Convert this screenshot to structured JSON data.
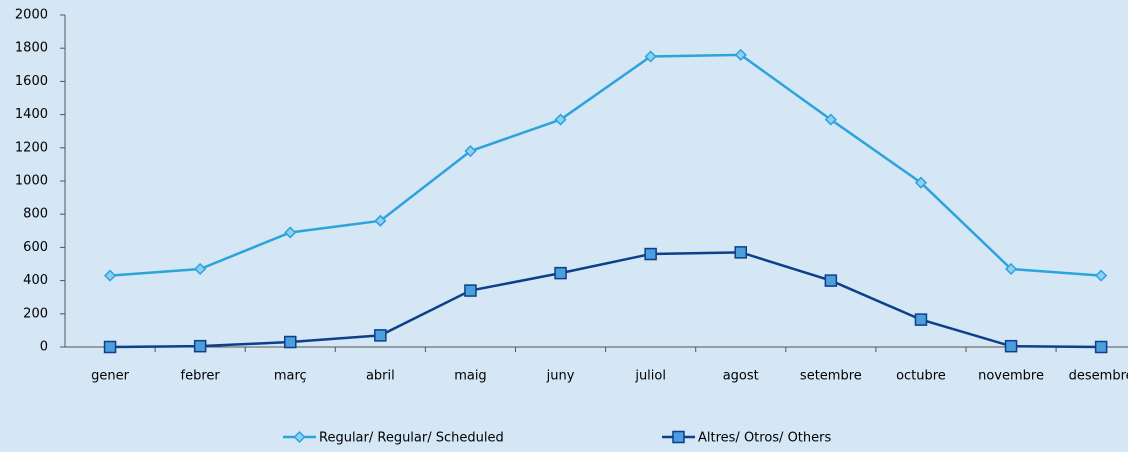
{
  "chart_data": {
    "type": "line",
    "categories": [
      "gener",
      "febrer",
      "març",
      "abril",
      "maig",
      "juny",
      "juliol",
      "agost",
      "setembre",
      "octubre",
      "novembre",
      "desembre"
    ],
    "series": [
      {
        "name": "Regular/ Regular/ Scheduled",
        "color": "#2ba3dc",
        "marker": "diamond",
        "values": [
          430,
          470,
          690,
          760,
          1180,
          1370,
          1750,
          1760,
          1370,
          990,
          470,
          430
        ]
      },
      {
        "name": "Altres/ Otros/ Others",
        "color": "#0d3f8a",
        "marker": "square",
        "values": [
          0,
          5,
          30,
          70,
          340,
          445,
          560,
          570,
          400,
          165,
          5,
          0
        ]
      }
    ],
    "ylim": [
      0,
      2000
    ],
    "yticks": [
      0,
      200,
      400,
      600,
      800,
      1000,
      1200,
      1400,
      1600,
      1800,
      2000
    ],
    "grid": false,
    "legend": "bottom"
  }
}
